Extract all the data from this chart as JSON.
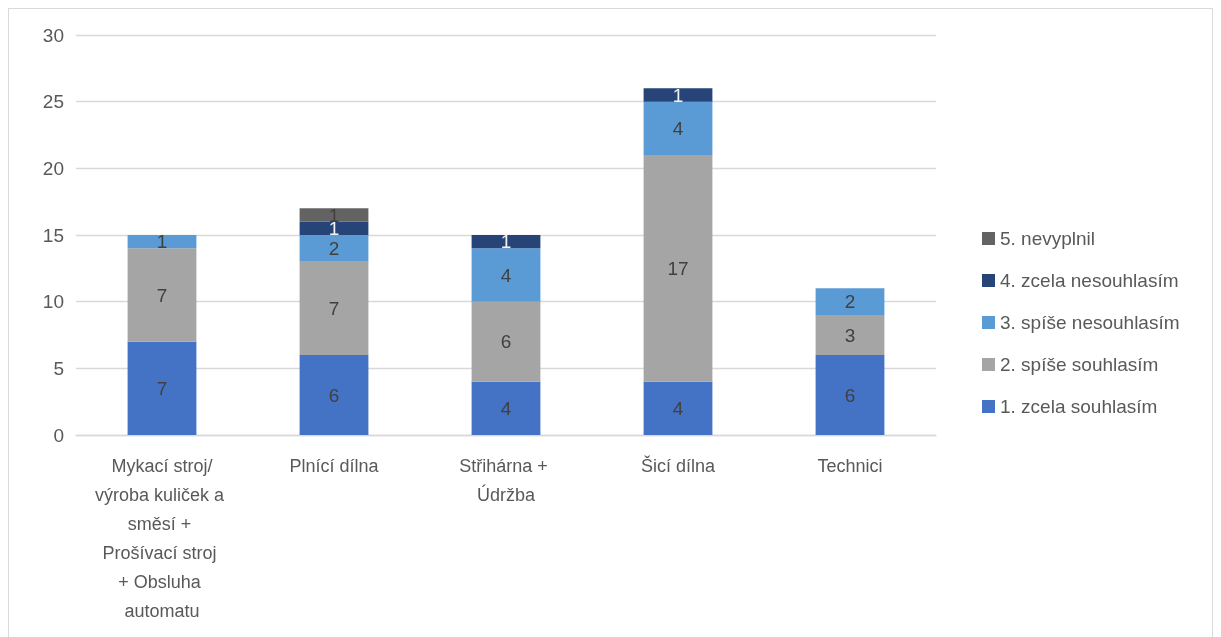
{
  "chart_data": {
    "type": "bar",
    "stacked": true,
    "categories": [
      "Mykací stroj/výroba kuliček a směsí + Prošívací stroj + Obsluha automatu",
      "Plnící dílna",
      "Střihárna + Údržba",
      "Šicí dílna",
      "Technici"
    ],
    "series": [
      {
        "name": "1. zcela souhlasím",
        "color": "#4472c4",
        "values": [
          7,
          6,
          4,
          4,
          6
        ]
      },
      {
        "name": "2. spíše souhlasím",
        "color": "#a5a5a5",
        "values": [
          7,
          7,
          6,
          17,
          3
        ]
      },
      {
        "name": "3. spíše nesouhlasím",
        "color": "#5b9bd5",
        "values": [
          1,
          2,
          4,
          4,
          2
        ]
      },
      {
        "name": "4. zcela nesouhlasím",
        "color": "#264478",
        "values": [
          null,
          1,
          1,
          1,
          null
        ]
      },
      {
        "name": "5. nevyplnil",
        "color": "#636363",
        "values": [
          null,
          1,
          null,
          null,
          null
        ]
      }
    ],
    "ylim": [
      0,
      30
    ],
    "yticks": [
      0,
      5,
      10,
      15,
      20,
      25,
      30
    ],
    "grid": "y",
    "legend": "right",
    "data_labels": true
  }
}
